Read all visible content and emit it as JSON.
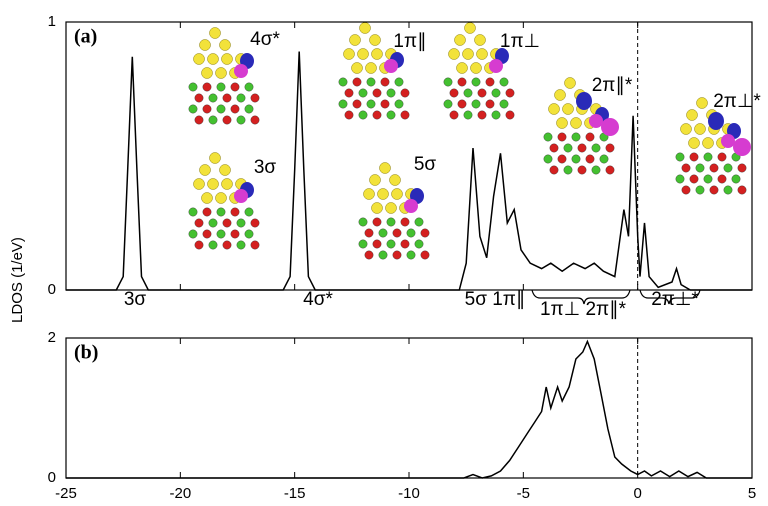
{
  "chart_data": [
    {
      "type": "line",
      "label": "(a)",
      "ylabel": "LDOS (1/eV)",
      "xlim": [
        -25,
        5
      ],
      "ylim": [
        0,
        1
      ],
      "yticks": [
        0,
        1
      ],
      "x": [
        -25,
        -22.8,
        -22.5,
        -22.3,
        -22.1,
        -21.9,
        -21.7,
        -21.4,
        -15.5,
        -15.2,
        -15.0,
        -14.8,
        -14.6,
        -14.4,
        -14.1,
        -7.8,
        -7.5,
        -7.2,
        -6.9,
        -6.6,
        -6.3,
        -6.0,
        -5.7,
        -5.4,
        -5.1,
        -4.7,
        -4.2,
        -3.8,
        -3.3,
        -2.8,
        -2.3,
        -1.9,
        -1.5,
        -1.0,
        -0.6,
        -0.4,
        -0.2,
        0.0,
        0.1,
        0.3,
        0.5,
        0.9,
        1.5,
        1.7,
        1.9,
        2.3,
        5
      ],
      "series": [
        {
          "color": "#000000",
          "values": [
            0,
            0,
            0.05,
            0.45,
            0.87,
            0.45,
            0.05,
            0,
            0,
            0.05,
            0.45,
            0.89,
            0.45,
            0.05,
            0,
            0,
            0.1,
            0.53,
            0.2,
            0.12,
            0.35,
            0.51,
            0.25,
            0.3,
            0.15,
            0.1,
            0.08,
            0.1,
            0.07,
            0.1,
            0.08,
            0.1,
            0.07,
            0.05,
            0.3,
            0.2,
            0.65,
            0.2,
            0.05,
            0.25,
            0.05,
            0.01,
            0.03,
            0.08,
            0.02,
            0,
            0
          ]
        }
      ],
      "annotations": [
        "3σ",
        "4σ*",
        "5σ 1π∥",
        "1π⊥ 2π∥*",
        "2π⊥*",
        "4σ*",
        "3σ",
        "1π∥",
        "1π⊥",
        "5σ",
        "2π∥*",
        "2π⊥*"
      ]
    },
    {
      "type": "line",
      "label": "(b)",
      "xlim": [
        -25,
        5
      ],
      "xticks": [
        -25,
        -20,
        -15,
        -10,
        -5,
        0,
        5
      ],
      "ylim": [
        0,
        2
      ],
      "yticks": [
        0,
        2
      ],
      "x": [
        -25,
        -7.6,
        -7.2,
        -6.8,
        -6.4,
        -6.0,
        -5.6,
        -5.2,
        -4.8,
        -4.5,
        -4.2,
        -4.0,
        -3.8,
        -3.5,
        -3.3,
        -3.0,
        -2.7,
        -2.4,
        -2.2,
        -1.9,
        -1.6,
        -1.3,
        -1.0,
        -0.7,
        -0.3,
        0,
        0.3,
        0.6,
        1.0,
        1.4,
        1.8,
        2.2,
        2.6,
        3.0,
        5
      ],
      "series": [
        {
          "color": "#000000",
          "values": [
            0,
            0,
            0.05,
            0,
            0.03,
            0.1,
            0.25,
            0.45,
            0.65,
            0.8,
            0.95,
            1.3,
            1.0,
            1.3,
            1.1,
            1.3,
            1.7,
            1.8,
            1.95,
            1.7,
            1.2,
            0.7,
            0.3,
            0.2,
            0.1,
            0.05,
            0.1,
            0.03,
            0.1,
            0.02,
            0.1,
            0.02,
            0.08,
            0,
            0
          ]
        }
      ]
    }
  ]
}
